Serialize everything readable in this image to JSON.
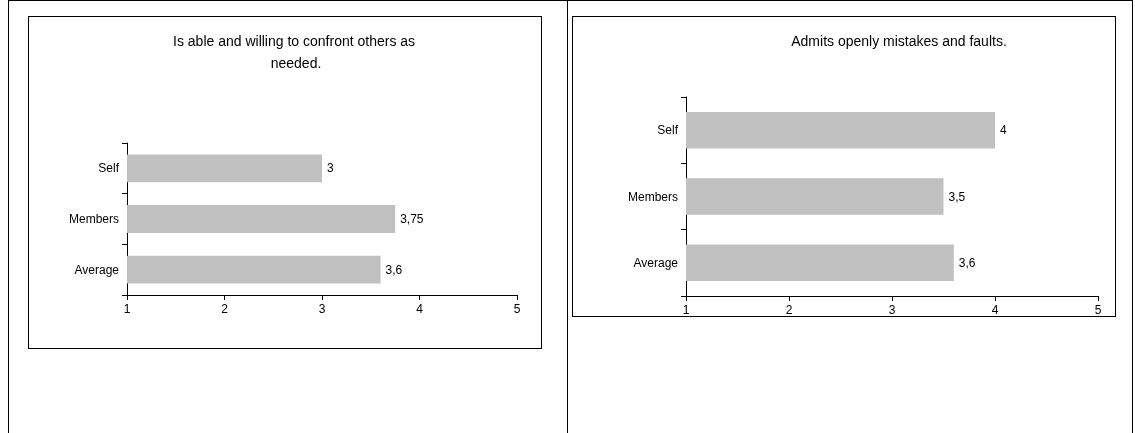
{
  "chart_data": [
    {
      "type": "bar",
      "orientation": "horizontal",
      "title": "Is able and willing to confront others as needed.",
      "categories": [
        "Self",
        "Members",
        "Average"
      ],
      "values": [
        3,
        3.75,
        3.6
      ],
      "value_labels": [
        "3",
        "3,75",
        "3,6"
      ],
      "color": "#c0c0c0",
      "xlim": [
        1,
        5
      ],
      "xticks": [
        1,
        2,
        3,
        4,
        5
      ],
      "grid": false
    },
    {
      "type": "bar",
      "orientation": "horizontal",
      "title": "Admits openly mistakes and faults.",
      "categories": [
        "Self",
        "Members",
        "Average"
      ],
      "values": [
        4,
        3.5,
        3.6
      ],
      "value_labels": [
        "4",
        "3,5",
        "3,6"
      ],
      "color": "#c0c0c0",
      "xlim": [
        1,
        5
      ],
      "xticks": [
        1,
        2,
        3,
        4,
        5
      ],
      "grid": false
    }
  ]
}
